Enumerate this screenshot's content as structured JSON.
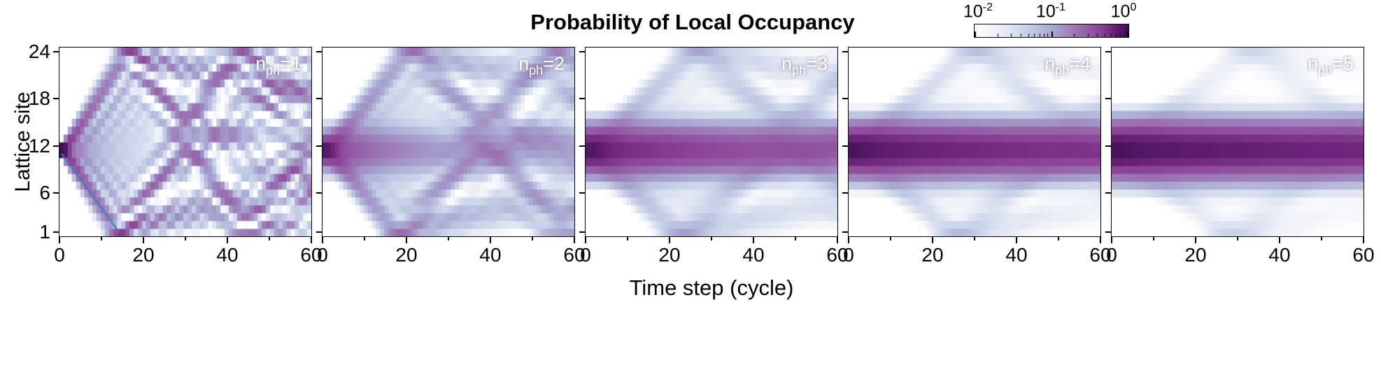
{
  "chart_data": {
    "type": "heatmap",
    "title": "Probability of Local Occupancy",
    "xlabel": "Time step (cycle)",
    "ylabel": "Lattice site",
    "x": {
      "min": 0,
      "max": 60,
      "ticks": [
        0,
        20,
        40,
        60
      ],
      "minor_ticks": [
        10,
        30,
        50
      ]
    },
    "y": {
      "min": 1,
      "max": 24,
      "ticks": [
        1,
        6,
        12,
        18,
        24
      ]
    },
    "color": {
      "scale": "log10",
      "min": 0.01,
      "max": 1,
      "bar_tick_labels": [
        {
          "base": "10",
          "exp": "-2",
          "pos": 0
        },
        {
          "base": "10",
          "exp": "-1",
          "pos": 0.5
        },
        {
          "base": "10",
          "exp": "0",
          "pos": 1
        }
      ],
      "stops": [
        [
          0.0,
          "#ffffff"
        ],
        [
          0.15,
          "#eef1f8"
        ],
        [
          0.35,
          "#c6d0e7"
        ],
        [
          0.52,
          "#a6a3cf"
        ],
        [
          0.68,
          "#9a6fb0"
        ],
        [
          0.82,
          "#8c4396"
        ],
        [
          0.92,
          "#651f74"
        ],
        [
          1.0,
          "#3f0f52"
        ]
      ]
    },
    "initial_sites": [
      11,
      12
    ],
    "center": 11.5,
    "hop_scale": 0.45,
    "panels": [
      {
        "n_ph": 1,
        "label": {
          "text": "n",
          "sub": "ph",
          "suffix": "=1"
        },
        "speed_factor": 1.0,
        "localized_weight": 0.0,
        "localized_sigma": 1.5,
        "loc_tau": 30,
        "loc_floor": 0.3,
        "blur_passes": 0,
        "overlay_line": {
          "t": [
            0,
            14
          ],
          "site": [
            11,
            1
          ],
          "color": "#3f7cc3"
        }
      },
      {
        "n_ph": 2,
        "label": {
          "text": "n",
          "sub": "ph",
          "suffix": "=2"
        },
        "speed_factor": 0.78,
        "localized_weight": 0.3,
        "localized_sigma": 1.7,
        "loc_tau": 25,
        "loc_floor": 0.3,
        "blur_passes": 1
      },
      {
        "n_ph": 3,
        "label": {
          "text": "n",
          "sub": "ph",
          "suffix": "=3"
        },
        "speed_factor": 0.62,
        "localized_weight": 0.62,
        "localized_sigma": 1.9,
        "loc_tau": 70,
        "loc_floor": 0.5,
        "blur_passes": 2
      },
      {
        "n_ph": 4,
        "label": {
          "text": "n",
          "sub": "ph",
          "suffix": "=4"
        },
        "speed_factor": 0.55,
        "localized_weight": 0.76,
        "localized_sigma": 2.0,
        "loc_tau": 140,
        "loc_floor": 0.6,
        "blur_passes": 2
      },
      {
        "n_ph": 5,
        "label": {
          "text": "n",
          "sub": "ph",
          "suffix": "=5"
        },
        "speed_factor": 0.5,
        "localized_weight": 0.83,
        "localized_sigma": 2.1,
        "loc_tau": 200,
        "loc_floor": 0.7,
        "blur_passes": 3
      }
    ]
  }
}
